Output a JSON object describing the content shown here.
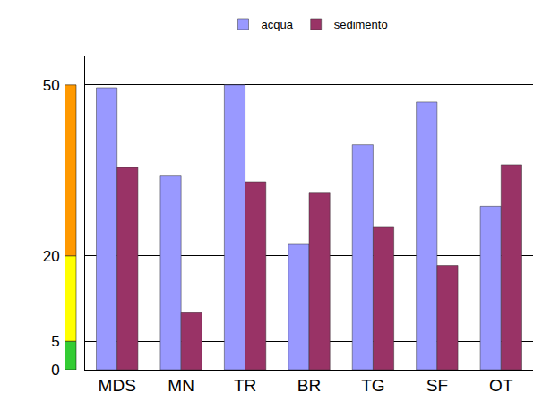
{
  "chart_data": {
    "type": "bar",
    "categories": [
      "MDS",
      "MN",
      "TR",
      "BR",
      "TG",
      "SF",
      "OT"
    ],
    "series": [
      {
        "name": "acqua",
        "color": "#9999ff",
        "values": [
          49.5,
          34,
          50,
          22,
          39.5,
          47,
          28.7
        ]
      },
      {
        "name": "sedimento",
        "color": "#993366",
        "values": [
          35.5,
          10,
          33,
          31,
          25,
          18.3,
          36
        ]
      }
    ],
    "ylim": [
      0,
      55
    ],
    "yticks": [
      0,
      5,
      20,
      50
    ],
    "grid": true,
    "legend": "top"
  }
}
